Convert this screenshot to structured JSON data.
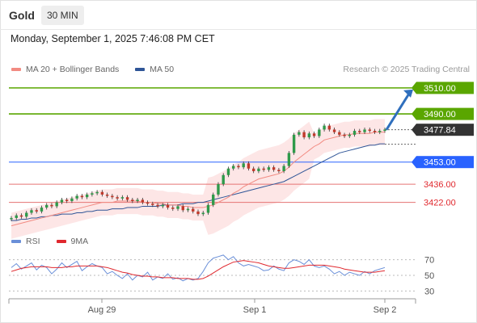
{
  "header": {
    "title": "Gold",
    "timeframe": "30 MIN"
  },
  "datetime": "Monday, September 1, 2025 7:46:08 PM CET",
  "legend": {
    "items": [
      {
        "label": "MA 20 + Bollinger Bands",
        "color": "#f28b82"
      },
      {
        "label": "MA 50",
        "color": "#2f5597"
      }
    ],
    "credit": "Research © 2025 Trading Central"
  },
  "rsi_legend": {
    "items": [
      {
        "label": "RSI",
        "color": "#6a8fd8"
      },
      {
        "label": "9MA",
        "color": "#e0282e"
      }
    ]
  },
  "colors": {
    "resistance": "#5aa600",
    "current": "#333333",
    "pivot": "#2962ff",
    "support": "#e57373",
    "arrow": "#2f6fbd",
    "candle_up": "#2f9a4a",
    "candle_down": "#c0392b"
  },
  "chart_data": [
    {
      "type": "line",
      "subtype": "candlestick",
      "title": "",
      "x_labels": [
        "Aug 29",
        "Sep 1",
        "Sep 2"
      ],
      "ylim": [
        3405,
        3518
      ],
      "levels": [
        {
          "value": 3510.0,
          "label": "3510.00",
          "kind": "resistance"
        },
        {
          "value": 3490.0,
          "label": "3490.00",
          "kind": "resistance"
        },
        {
          "value": 3477.84,
          "label": "3477.84",
          "kind": "current"
        },
        {
          "value": 3453.0,
          "label": "3453.00",
          "kind": "pivot"
        },
        {
          "value": 3436.0,
          "label": "3436.00",
          "kind": "support"
        },
        {
          "value": 3422.0,
          "label": "3422.00",
          "kind": "support"
        }
      ],
      "close": [
        3410,
        3412,
        3411,
        3414,
        3416,
        3415,
        3418,
        3420,
        3419,
        3422,
        3424,
        3423,
        3425,
        3427,
        3426,
        3428,
        3429,
        3430,
        3428,
        3427,
        3426,
        3425,
        3426,
        3424,
        3423,
        3424,
        3422,
        3421,
        3420,
        3419,
        3420,
        3418,
        3417,
        3419,
        3416,
        3417,
        3415,
        3413,
        3414,
        3420,
        3428,
        3436,
        3443,
        3448,
        3450,
        3449,
        3452,
        3448,
        3446,
        3448,
        3447,
        3449,
        3447,
        3446,
        3450,
        3460,
        3474,
        3476,
        3472,
        3475,
        3473,
        3478,
        3481,
        3478,
        3476,
        3474,
        3473,
        3474,
        3477,
        3476,
        3478,
        3477,
        3476,
        3477,
        3478
      ],
      "ma20": [
        3404,
        3405,
        3406,
        3407,
        3408,
        3409,
        3410,
        3411,
        3412,
        3413,
        3414,
        3415,
        3416,
        3417,
        3418,
        3419,
        3420,
        3421,
        3422,
        3422,
        3422,
        3423,
        3423,
        3423,
        3423,
        3423,
        3422,
        3422,
        3422,
        3421,
        3421,
        3420,
        3420,
        3420,
        3419,
        3419,
        3418,
        3418,
        3418,
        3419,
        3420,
        3422,
        3424,
        3426,
        3429,
        3431,
        3434,
        3436,
        3438,
        3440,
        3441,
        3442,
        3443,
        3444,
        3446,
        3449,
        3453,
        3456,
        3459,
        3462,
        3465,
        3467,
        3470,
        3471,
        3472,
        3473,
        3474,
        3474,
        3475,
        3475,
        3475,
        3475,
        3476,
        3476,
        3476
      ],
      "ma50": [
        3408,
        3408,
        3409,
        3409,
        3410,
        3410,
        3411,
        3411,
        3412,
        3412,
        3413,
        3413,
        3413,
        3414,
        3414,
        3415,
        3415,
        3416,
        3416,
        3416,
        3417,
        3417,
        3417,
        3418,
        3418,
        3418,
        3419,
        3419,
        3419,
        3419,
        3420,
        3420,
        3420,
        3420,
        3421,
        3421,
        3421,
        3422,
        3422,
        3423,
        3424,
        3425,
        3426,
        3427,
        3428,
        3429,
        3430,
        3431,
        3432,
        3433,
        3434,
        3435,
        3436,
        3437,
        3438,
        3440,
        3442,
        3444,
        3446,
        3448,
        3450,
        3452,
        3454,
        3456,
        3458,
        3460,
        3461,
        3462,
        3463,
        3464,
        3465,
        3466,
        3466,
        3467,
        3467
      ],
      "projection": {
        "from": 3477.84,
        "to": 3510.0
      }
    },
    {
      "type": "line",
      "title": "",
      "series": [
        {
          "name": "RSI"
        },
        {
          "name": "9MA"
        }
      ],
      "yticks": [
        70,
        50,
        30
      ],
      "ylim": [
        20,
        80
      ],
      "rsi": [
        60,
        65,
        58,
        62,
        66,
        57,
        63,
        60,
        52,
        58,
        66,
        60,
        64,
        68,
        56,
        61,
        65,
        62,
        60,
        52,
        55,
        50,
        46,
        52,
        44,
        50,
        48,
        54,
        44,
        48,
        46,
        52,
        45,
        47,
        43,
        46,
        44,
        46,
        55,
        66,
        72,
        74,
        76,
        70,
        74,
        66,
        62,
        64,
        62,
        60,
        56,
        57,
        62,
        58,
        56,
        66,
        70,
        68,
        64,
        70,
        62,
        60,
        62,
        58,
        52,
        55,
        50,
        54,
        52,
        50,
        55,
        52,
        56,
        58,
        60
      ],
      "ma9": [
        55,
        57,
        59,
        60,
        61,
        61,
        61,
        61,
        60,
        60,
        60,
        61,
        61,
        62,
        62,
        62,
        62,
        62,
        61,
        60,
        58,
        56,
        54,
        53,
        51,
        50,
        49,
        49,
        48,
        48,
        47,
        47,
        47,
        46,
        46,
        46,
        45,
        45,
        46,
        49,
        53,
        57,
        61,
        64,
        67,
        68,
        69,
        68,
        67,
        66,
        64,
        62,
        61,
        60,
        59,
        59,
        60,
        61,
        62,
        63,
        63,
        63,
        63,
        62,
        61,
        60,
        58,
        57,
        56,
        55,
        54,
        54,
        54,
        55,
        56
      ]
    }
  ]
}
